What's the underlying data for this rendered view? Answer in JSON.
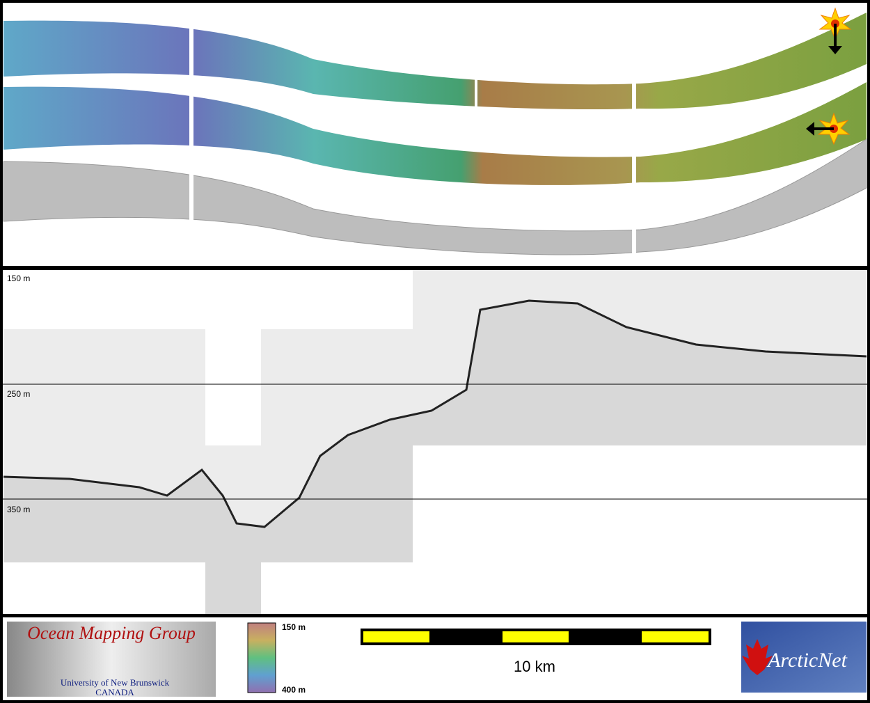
{
  "profile": {
    "depth_labels": [
      "150 m",
      "250 m",
      "350 m"
    ]
  },
  "footer": {
    "logo": {
      "title": "Ocean Mapping Group",
      "line1": "University of New Brunswick",
      "line2": "CANADA"
    },
    "colorbar": {
      "top": "150 m",
      "bottom": "400 m"
    },
    "scalebar": {
      "label": "10 km"
    },
    "partner": "ArcticNet"
  }
}
